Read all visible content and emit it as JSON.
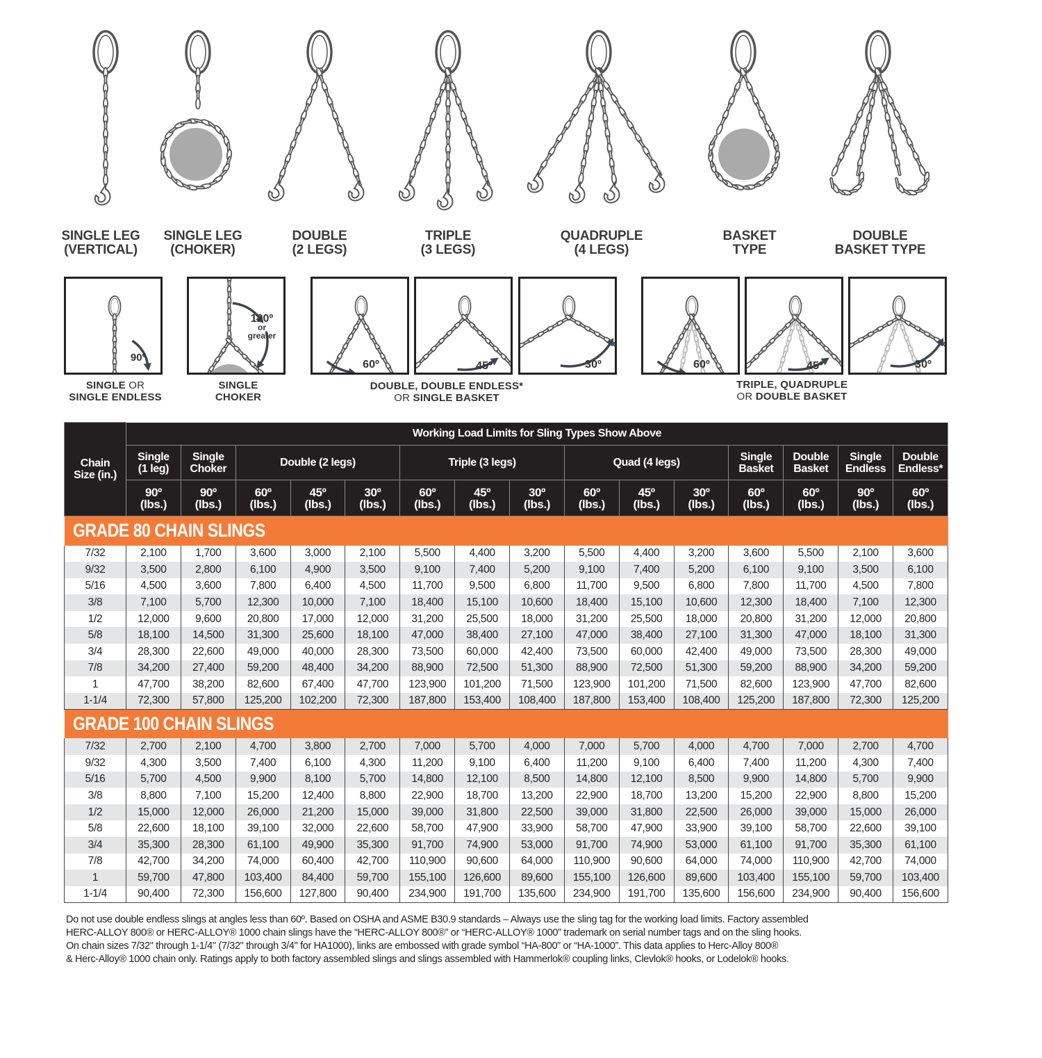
{
  "sling_types": [
    {
      "line1": "SINGLE LEG",
      "line2": "(VERTICAL)"
    },
    {
      "line1": "SINGLE LEG",
      "line2": "(CHOKER)"
    },
    {
      "line1": "DOUBLE",
      "line2": "(2 LEGS)"
    },
    {
      "line1": "TRIPLE",
      "line2": "(3 LEGS)"
    },
    {
      "line1": "QUADRUPLE",
      "line2": "(4 LEGS)"
    },
    {
      "line1": "BASKET",
      "line2": "TYPE"
    },
    {
      "line1": "DOUBLE",
      "line2": "BASKET TYPE"
    }
  ],
  "angle_boxes": {
    "single": "90º",
    "choker": {
      "a": "120º",
      "b": "or",
      "c": "greater"
    },
    "double": [
      "60º",
      "45º",
      "30º"
    ],
    "multi": [
      "60º",
      "45º",
      "30º"
    ]
  },
  "captions": {
    "single": {
      "a": "SINGLE",
      "or": "OR",
      "b": "SINGLE ENDLESS"
    },
    "choker": {
      "a": "SINGLE",
      "b": "CHOKER"
    },
    "double": {
      "a": "DOUBLE, DOUBLE ENDLESS*",
      "or": "OR",
      "b": "SINGLE BASKET"
    },
    "multi": {
      "a": "TRIPLE, QUADRUPLE",
      "or": "OR",
      "b": "DOUBLE BASKET"
    }
  },
  "colors": {
    "orange": "#f47b37",
    "header": "#231f20",
    "stripe": "#e4e5e7",
    "load": "#aaaaaa"
  },
  "table": {
    "title": "Working Load Limits for Sling Types Show Above",
    "chain_size": "Chain Size (in.)",
    "groups": [
      "Single (1 leg)",
      "Single Choker",
      "Double (2 legs)",
      "Triple (3 legs)",
      "Quad (4 legs)",
      "Single Basket",
      "Double Basket",
      "Single Endless",
      "Double Endless*"
    ],
    "angles": [
      "90º (lbs.)",
      "90º (lbs.)",
      "60º (lbs.)",
      "45º (lbs.)",
      "30º (lbs.)",
      "60º (lbs.)",
      "45º (lbs.)",
      "30º (lbs.)",
      "60º (lbs.)",
      "45º (lbs.)",
      "30º (lbs.)",
      "60º (lbs.)",
      "60º (lbs.)",
      "90º (lbs.)",
      "60º (lbs.)"
    ],
    "grades": [
      {
        "title": "GRADE 80 CHAIN SLINGS",
        "rows": [
          [
            "7/32",
            "2,100",
            "1,700",
            "3,600",
            "3,000",
            "2,100",
            "5,500",
            "4,400",
            "3,200",
            "5,500",
            "4,400",
            "3,200",
            "3,600",
            "5,500",
            "2,100",
            "3,600"
          ],
          [
            "9/32",
            "3,500",
            "2,800",
            "6,100",
            "4,900",
            "3,500",
            "9,100",
            "7,400",
            "5,200",
            "9,100",
            "7,400",
            "5,200",
            "6,100",
            "9,100",
            "3,500",
            "6,100"
          ],
          [
            "5/16",
            "4,500",
            "3,600",
            "7,800",
            "6,400",
            "4,500",
            "11,700",
            "9,500",
            "6,800",
            "11,700",
            "9,500",
            "6,800",
            "7,800",
            "11,700",
            "4,500",
            "7,800"
          ],
          [
            "3/8",
            "7,100",
            "5,700",
            "12,300",
            "10,000",
            "7,100",
            "18,400",
            "15,100",
            "10,600",
            "18,400",
            "15,100",
            "10,600",
            "12,300",
            "18,400",
            "7,100",
            "12,300"
          ],
          [
            "1/2",
            "12,000",
            "9,600",
            "20,800",
            "17,000",
            "12,000",
            "31,200",
            "25,500",
            "18,000",
            "31,200",
            "25,500",
            "18,000",
            "20,800",
            "31,200",
            "12,000",
            "20,800"
          ],
          [
            "5/8",
            "18,100",
            "14,500",
            "31,300",
            "25,600",
            "18,100",
            "47,000",
            "38,400",
            "27,100",
            "47,000",
            "38,400",
            "27,100",
            "31,300",
            "47,000",
            "18,100",
            "31,300"
          ],
          [
            "3/4",
            "28,300",
            "22,600",
            "49,000",
            "40,000",
            "28,300",
            "73,500",
            "60,000",
            "42,400",
            "73,500",
            "60,000",
            "42,400",
            "49,000",
            "73,500",
            "28,300",
            "49,000"
          ],
          [
            "7/8",
            "34,200",
            "27,400",
            "59,200",
            "48,400",
            "34,200",
            "88,900",
            "72,500",
            "51,300",
            "88,900",
            "72,500",
            "51,300",
            "59,200",
            "88,900",
            "34,200",
            "59,200"
          ],
          [
            "1",
            "47,700",
            "38,200",
            "82,600",
            "67,400",
            "47,700",
            "123,900",
            "101,200",
            "71,500",
            "123,900",
            "101,200",
            "71,500",
            "82,600",
            "123,900",
            "47,700",
            "82,600"
          ],
          [
            "1-1/4",
            "72,300",
            "57,800",
            "125,200",
            "102,200",
            "72,300",
            "187,800",
            "153,400",
            "108,400",
            "187,800",
            "153,400",
            "108,400",
            "125,200",
            "187,800",
            "72,300",
            "125,200"
          ]
        ]
      },
      {
        "title": "GRADE 100 CHAIN SLINGS",
        "rows": [
          [
            "7/32",
            "2,700",
            "2,100",
            "4,700",
            "3,800",
            "2,700",
            "7,000",
            "5,700",
            "4,000",
            "7,000",
            "5,700",
            "4,000",
            "4,700",
            "7,000",
            "2,700",
            "4,700"
          ],
          [
            "9/32",
            "4,300",
            "3,500",
            "7,400",
            "6,100",
            "4,300",
            "11,200",
            "9,100",
            "6,400",
            "11,200",
            "9,100",
            "6,400",
            "7,400",
            "11,200",
            "4,300",
            "7,400"
          ],
          [
            "5/16",
            "5,700",
            "4,500",
            "9,900",
            "8,100",
            "5,700",
            "14,800",
            "12,100",
            "8,500",
            "14,800",
            "12,100",
            "8,500",
            "9,900",
            "14,800",
            "5,700",
            "9,900"
          ],
          [
            "3/8",
            "8,800",
            "7,100",
            "15,200",
            "12,400",
            "8,800",
            "22,900",
            "18,700",
            "13,200",
            "22,900",
            "18,700",
            "13,200",
            "15,200",
            "22,900",
            "8,800",
            "15,200"
          ],
          [
            "1/2",
            "15,000",
            "12,000",
            "26,000",
            "21,200",
            "15,000",
            "39,000",
            "31,800",
            "22,500",
            "39,000",
            "31,800",
            "22,500",
            "26,000",
            "39,000",
            "15,000",
            "26,000"
          ],
          [
            "5/8",
            "22,600",
            "18,100",
            "39,100",
            "32,000",
            "22,600",
            "58,700",
            "47,900",
            "33,900",
            "58,700",
            "47,900",
            "33,900",
            "39,100",
            "58,700",
            "22,600",
            "39,100"
          ],
          [
            "3/4",
            "35,300",
            "28,300",
            "61,100",
            "49,900",
            "35,300",
            "91,700",
            "74,900",
            "53,000",
            "91,700",
            "74,900",
            "53,000",
            "61,100",
            "91,700",
            "35,300",
            "61,100"
          ],
          [
            "7/8",
            "42,700",
            "34,200",
            "74,000",
            "60,400",
            "42,700",
            "110,900",
            "90,600",
            "64,000",
            "110,900",
            "90,600",
            "64,000",
            "74,000",
            "110,900",
            "42,700",
            "74,000"
          ],
          [
            "1",
            "59,700",
            "47,800",
            "103,400",
            "84,400",
            "59,700",
            "155,100",
            "126,600",
            "89,600",
            "155,100",
            "126,600",
            "89,600",
            "103,400",
            "155,100",
            "59,700",
            "103,400"
          ],
          [
            "1-1/4",
            "90,400",
            "72,300",
            "156,600",
            "127,800",
            "90,400",
            "234,900",
            "191,700",
            "135,600",
            "234,900",
            "191,700",
            "135,600",
            "156,600",
            "234,900",
            "90,400",
            "156,600"
          ]
        ]
      }
    ]
  },
  "footnote": [
    "Do not use double endless slings at angles less than 60º. Based on OSHA and ASME B30.9 standards – Always use the sling tag for the working load limits. Factory assembled",
    "HERC-ALLOY 800® or HERC-ALLOY® 1000 chain slings have the “HERC-ALLOY 800®” or “HERC-ALLOY® 1000” trademark on serial number tags and on the sling hooks.",
    "On chain sizes 7/32\" through 1-1/4\" (7/32\" through 3/4\" for HA1000), links are embossed with grade symbol “HA-800” or “HA-1000”. This data applies to Herc-Alloy 800®",
    "& Herc-Alloy® 1000 chain only. Ratings apply to both factory assembled slings and slings assembled with Hammerlok® coupling links, Clevlok® hooks, or Lodelok® hooks."
  ]
}
